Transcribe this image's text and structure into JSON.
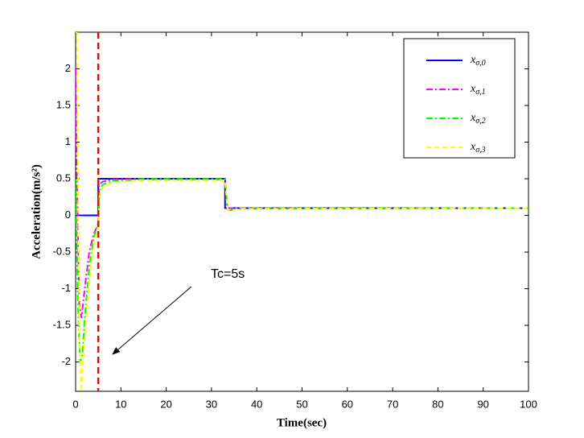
{
  "chart_data": {
    "type": "line",
    "xlabel": "Time(sec)",
    "ylabel": "Acceleration(m/s²)",
    "xlim": [
      0,
      100
    ],
    "xticks": [
      0,
      10,
      20,
      30,
      40,
      50,
      60,
      70,
      80,
      90,
      100
    ],
    "ylim": [
      -2.4,
      2.5
    ],
    "yticks": [
      -2,
      -1.5,
      -1,
      -0.5,
      0,
      0.5,
      1,
      1.5,
      2
    ],
    "grid": false,
    "legend": "upper right",
    "vline": {
      "x": 5,
      "color": "#ff0000"
    },
    "annotation": "Tc=5s",
    "series": [
      {
        "name": "xσ,0",
        "color": "#0000ff",
        "linestyle": "solid",
        "x": [
          0,
          5,
          5,
          33,
          33,
          100
        ],
        "values": [
          0,
          0,
          0.5,
          0.5,
          0.1,
          0.1
        ]
      },
      {
        "name": "xσ,1",
        "color": "#ff00ff",
        "linestyle": "dashdot",
        "x": [
          0,
          0.3,
          0.8,
          1.3,
          2,
          3,
          4,
          5,
          5.2,
          6,
          8,
          15,
          33,
          33.5,
          35,
          40,
          100
        ],
        "values": [
          2,
          0.5,
          -1.2,
          -1.4,
          -1.0,
          -0.5,
          -0.25,
          -0.12,
          0.42,
          0.46,
          0.49,
          0.5,
          0.5,
          0.1,
          0.1,
          0.1,
          0.1
        ]
      },
      {
        "name": "xσ,2",
        "color": "#00ff00",
        "linestyle": "dashdot",
        "x": [
          0,
          0.5,
          1,
          1.5,
          2,
          3,
          4,
          5,
          5.3,
          6,
          8,
          15,
          33,
          33.5,
          34,
          36,
          100
        ],
        "values": [
          0.5,
          -1.2,
          -2.0,
          -1.9,
          -1.4,
          -0.7,
          -0.3,
          -0.1,
          0.35,
          0.42,
          0.47,
          0.49,
          0.49,
          0.09,
          0.07,
          0.09,
          0.1
        ]
      },
      {
        "name": "xσ,3",
        "color": "#ffff00",
        "linestyle": "dashed",
        "x": [
          0,
          0.3,
          0.8,
          1.2,
          2,
          3,
          4,
          5,
          5.3,
          6,
          8,
          15,
          33,
          33.5,
          34,
          36,
          100
        ],
        "values": [
          2.5,
          2.5,
          -1.5,
          -2.4,
          -1.7,
          -0.9,
          -0.4,
          -0.15,
          0.3,
          0.38,
          0.45,
          0.48,
          0.48,
          0.09,
          0.07,
          0.09,
          0.1
        ]
      }
    ]
  }
}
